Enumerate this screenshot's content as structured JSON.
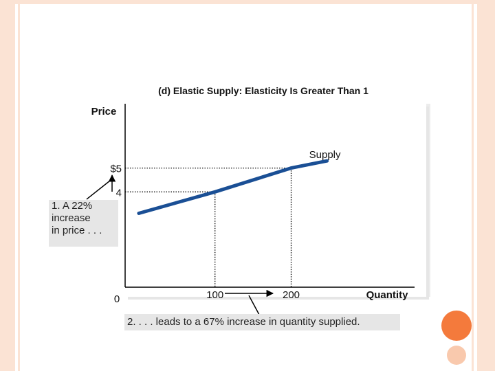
{
  "chart_data": {
    "type": "line",
    "title": "(d) Elastic Supply: Elasticity Is Greater Than 1",
    "xlabel": "Quantity",
    "ylabel": "Price",
    "origin_label": "0",
    "x_ticks": [
      {
        "value": 100,
        "label": "100"
      },
      {
        "value": 200,
        "label": "200"
      }
    ],
    "y_ticks": [
      {
        "value": 4,
        "label": "4"
      },
      {
        "value": 5,
        "label": "$5"
      }
    ],
    "series": [
      {
        "name": "Supply",
        "x": [
          0,
          100,
          200,
          247
        ],
        "y": [
          3.1,
          4,
          5,
          5.3
        ]
      }
    ],
    "highlighted_points": [
      {
        "x": 100,
        "y": 4
      },
      {
        "x": 200,
        "y": 5
      }
    ],
    "xlim": [
      -18,
      362
    ],
    "ylim": [
      0,
      7.7
    ],
    "grid": false,
    "colors": {
      "supply": "#1a4f95",
      "axis": "#000000"
    },
    "annotations": {
      "price_change_lines": [
        "1. A 22%",
        "increase",
        "in price . . ."
      ],
      "quantity_change": "2. . . . leads to a 67% increase in quantity supplied."
    }
  }
}
